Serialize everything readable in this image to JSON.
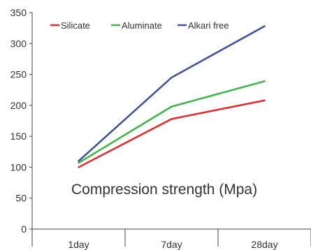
{
  "chart_data": {
    "type": "line",
    "categories": [
      "1day",
      "7day",
      "28day"
    ],
    "series": [
      {
        "name": "Silicate",
        "values": [
          100,
          178,
          208
        ],
        "color": "#e8262b"
      },
      {
        "name": "Aluminate",
        "values": [
          107,
          198,
          239
        ],
        "color": "#3db54a"
      },
      {
        "name": "Alkari free",
        "values": [
          110,
          245,
          328
        ],
        "color": "#3d4f9f"
      }
    ],
    "annotation": "Compression strength (Mpa)",
    "ylim": [
      0,
      350
    ],
    "yticks": [
      0,
      50,
      100,
      150,
      200,
      250,
      300,
      350
    ],
    "grid": false,
    "legend_position": "top-left"
  }
}
